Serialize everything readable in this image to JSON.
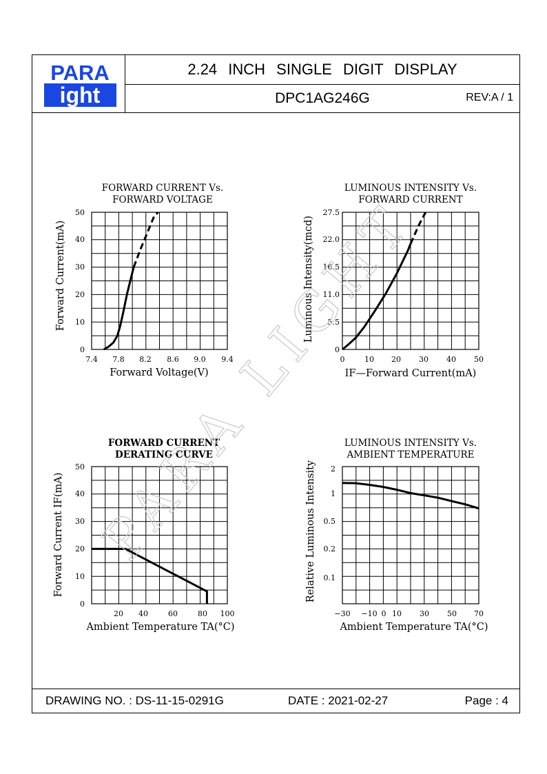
{
  "header": {
    "logo_top": "PARA",
    "logo_bottom": "ight",
    "logo_colors": {
      "blue": "#1a47e0",
      "white": "#ffffff"
    },
    "title": "2.24 INCH SINGLE DIGIT DISPLAY",
    "part_number": "DPC1AG246G",
    "revision": "REV:A / 1"
  },
  "watermark": "PARA LIGHT",
  "footer": {
    "drawing_no": "DRAWING NO. : DS-11-15-0291G",
    "date": "DATE : 2021-02-27",
    "page": "Page : 4"
  },
  "chart_data": [
    {
      "type": "line",
      "title": [
        "FORWARD CURRENT Vs.",
        "FORWARD VOLTAGE"
      ],
      "xlabel": "Forward Voltage(V)",
      "ylabel": "Forward Current(mA)",
      "x_ticks": [
        "7.4",
        "7.8",
        "8.2",
        "8.6",
        "9.0",
        "9.4"
      ],
      "y_ticks": [
        "0",
        "10",
        "20",
        "30",
        "40",
        "50"
      ],
      "xlim": [
        7.4,
        9.4
      ],
      "ylim": [
        0,
        50
      ],
      "grid": true,
      "series": [
        {
          "style": "solid",
          "x": [
            7.58,
            7.65,
            7.72,
            7.78,
            7.82,
            7.87,
            7.92,
            7.97,
            8.02
          ],
          "y": [
            0,
            1,
            2.5,
            5,
            8.5,
            14,
            20,
            25,
            30
          ]
        },
        {
          "style": "dashed",
          "x": [
            8.02,
            8.12,
            8.22,
            8.32,
            8.38
          ],
          "y": [
            30,
            36.5,
            42.5,
            48.5,
            50
          ]
        }
      ]
    },
    {
      "type": "line",
      "title": [
        "LUMINOUS INTENSITY Vs.",
        "FORWARD CURRENT"
      ],
      "xlabel": "IF—Forward Current(mA)",
      "ylabel": "Luminous Intensity(mcd)",
      "x_ticks": [
        "0",
        "10",
        "20",
        "30",
        "40",
        "50"
      ],
      "y_ticks": [
        "0",
        "5.5",
        "11.0",
        "16.5",
        "22.0",
        "27.5"
      ],
      "xlim": [
        0,
        50
      ],
      "ylim": [
        0,
        27.5
      ],
      "grid": true,
      "series": [
        {
          "style": "solid",
          "x": [
            0,
            2,
            5,
            8,
            12,
            16,
            20,
            24,
            25
          ],
          "y": [
            0,
            0.9,
            2.4,
            4.5,
            7.8,
            11.3,
            15.3,
            19.8,
            21.2
          ]
        },
        {
          "style": "dashed",
          "x": [
            25,
            28,
            30.5
          ],
          "y": [
            21.2,
            24.9,
            27.5
          ]
        }
      ]
    },
    {
      "type": "line",
      "title": [
        "FORWARD CURRENT",
        "DERATING CURVE"
      ],
      "xlabel": "Ambient Temperature TA(°C)",
      "ylabel": "Forward Current IF(mA)",
      "x_ticks": [
        "20",
        "40",
        "60",
        "80",
        "100"
      ],
      "y_ticks": [
        "0",
        "10",
        "20",
        "30",
        "40",
        "50"
      ],
      "xlim": [
        0,
        100
      ],
      "ylim": [
        0,
        50
      ],
      "grid": true,
      "series": [
        {
          "style": "solid",
          "x": [
            0,
            25,
            85,
            85
          ],
          "y": [
            20,
            20,
            4.5,
            0
          ]
        }
      ]
    },
    {
      "type": "line",
      "title": [
        "LUMINOUS INTENSITY Vs.",
        "AMBIENT TEMPERATURE"
      ],
      "xlabel": "Ambient Temperature TA(°C)",
      "ylabel": "Relative Luminous Intensity",
      "x_ticks": [
        "−30",
        "−10",
        "0",
        "10",
        "30",
        "50",
        "70"
      ],
      "y_ticks": [
        "0.1",
        "0.2",
        "0.5",
        "1",
        "2"
      ],
      "xlim": [
        -30,
        70
      ],
      "grid": true,
      "series": [
        {
          "style": "solid",
          "x": [
            -30,
            -20,
            -10,
            0,
            10,
            20,
            30,
            40,
            50,
            60,
            70
          ],
          "y": [
            1.35,
            1.34,
            1.28,
            1.21,
            1.12,
            1.02,
            0.96,
            0.9,
            0.82,
            0.75,
            0.67
          ]
        }
      ]
    }
  ]
}
